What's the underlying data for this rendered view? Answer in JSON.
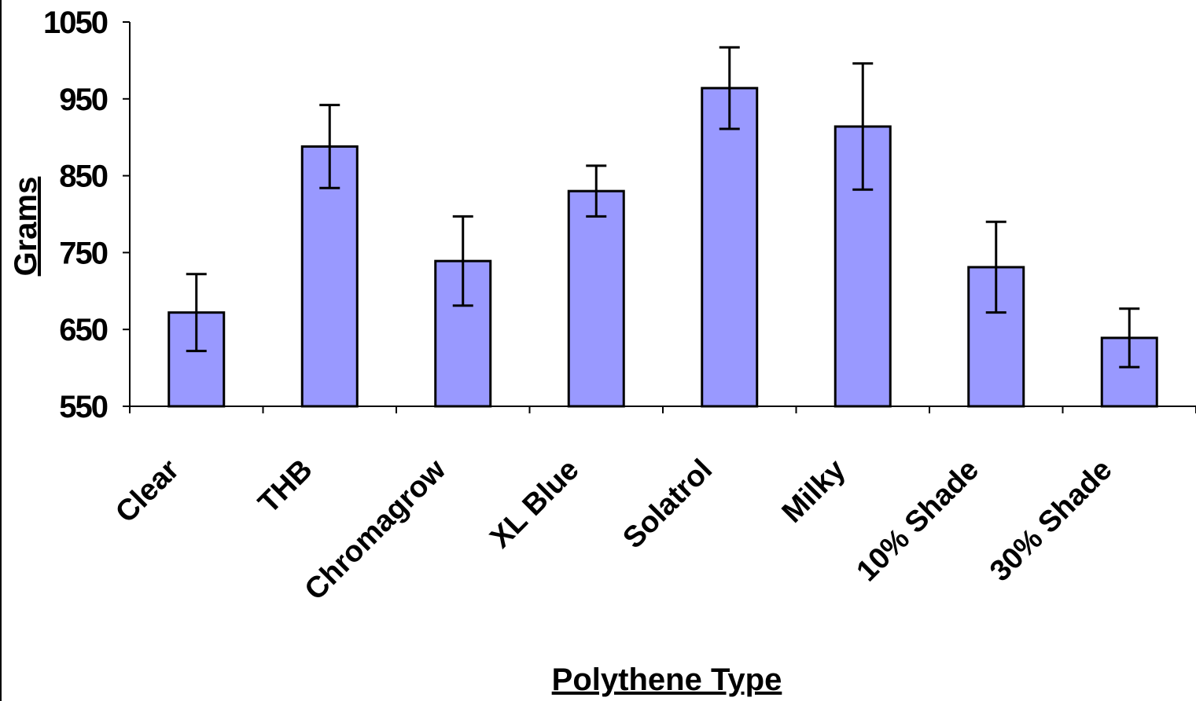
{
  "chart_data": {
    "type": "bar",
    "xlabel": "Polythene Type",
    "ylabel": "Grams",
    "ylim": [
      550,
      1050
    ],
    "yticks": [
      550,
      650,
      750,
      850,
      950,
      1050
    ],
    "categories": [
      "Clear",
      "THB",
      "Chromagrow",
      "XL Blue",
      "Solatrol",
      "Milky",
      "10% Shade",
      "30% Shade"
    ],
    "values": [
      672,
      888,
      739,
      830,
      964,
      914,
      731,
      639
    ],
    "error": [
      50,
      54,
      58,
      33,
      53,
      82,
      59,
      38
    ],
    "grid": false,
    "bar_color": "#9999ff",
    "bar_edge_color": "#000000"
  }
}
